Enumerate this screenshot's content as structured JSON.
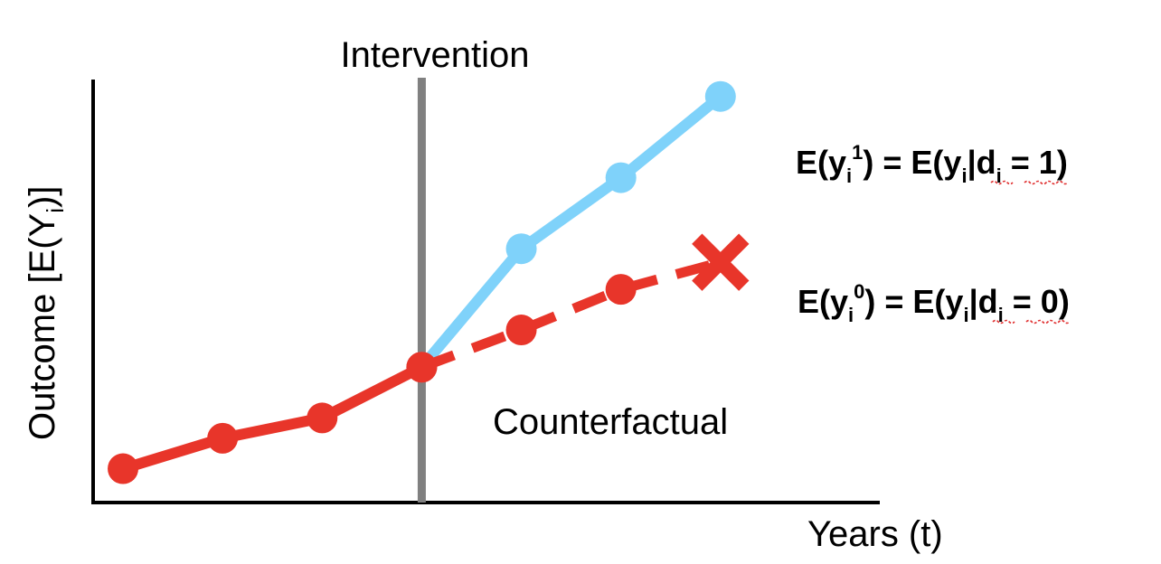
{
  "chart_data": {
    "type": "line",
    "title": "",
    "intervention_label": "Intervention",
    "counterfactual_label": "Counterfactual",
    "xlabel": "Years (t)",
    "ylabel": {
      "main": "Outcome [E(Y",
      "sub": "i",
      "end": ")]"
    },
    "intervention_x": 4,
    "xlim": [
      0.7,
      8.6
    ],
    "ylim": [
      0,
      12.5
    ],
    "grid": false,
    "series": [
      {
        "key": "pre",
        "x": [
          1,
          2,
          3,
          4
        ],
        "values": [
          1.0,
          1.9,
          2.5,
          4.0
        ],
        "color": "#e8352a",
        "style": "solid",
        "marker": "circle"
      },
      {
        "key": "treated",
        "x": [
          4,
          5,
          6,
          7
        ],
        "values": [
          4.0,
          7.5,
          9.6,
          12.0
        ],
        "color": "#7fd2fa",
        "style": "solid",
        "marker": "circle"
      },
      {
        "key": "counterfactual",
        "x": [
          4,
          5,
          6,
          7
        ],
        "values": [
          4.0,
          5.1,
          6.3,
          7.1
        ],
        "color": "#e8352a",
        "style": "dashed",
        "marker": "circle",
        "end_marker": "x"
      }
    ],
    "annotations": {
      "treated_eq": {
        "lhs": "E(y",
        "lhs_sub": "i",
        "lhs_sup": "1",
        "mid": ")  = E(",
        "y": "y",
        "y_sub": "i",
        "bar": "|",
        "d": "d",
        "d_sub": "i",
        "rhs": " = 1)"
      },
      "control_eq": {
        "lhs": "E(y",
        "lhs_sub": "i",
        "lhs_sup": "0",
        "mid": ")  = E(",
        "y": "y",
        "y_sub": "i",
        "bar": "|",
        "d": "d",
        "d_sub": "i",
        "rhs": " = 0)"
      }
    },
    "colors": {
      "axis": "#000000",
      "intervention_line": "#808080",
      "treated": "#7fd2fa",
      "control": "#e8352a"
    }
  }
}
